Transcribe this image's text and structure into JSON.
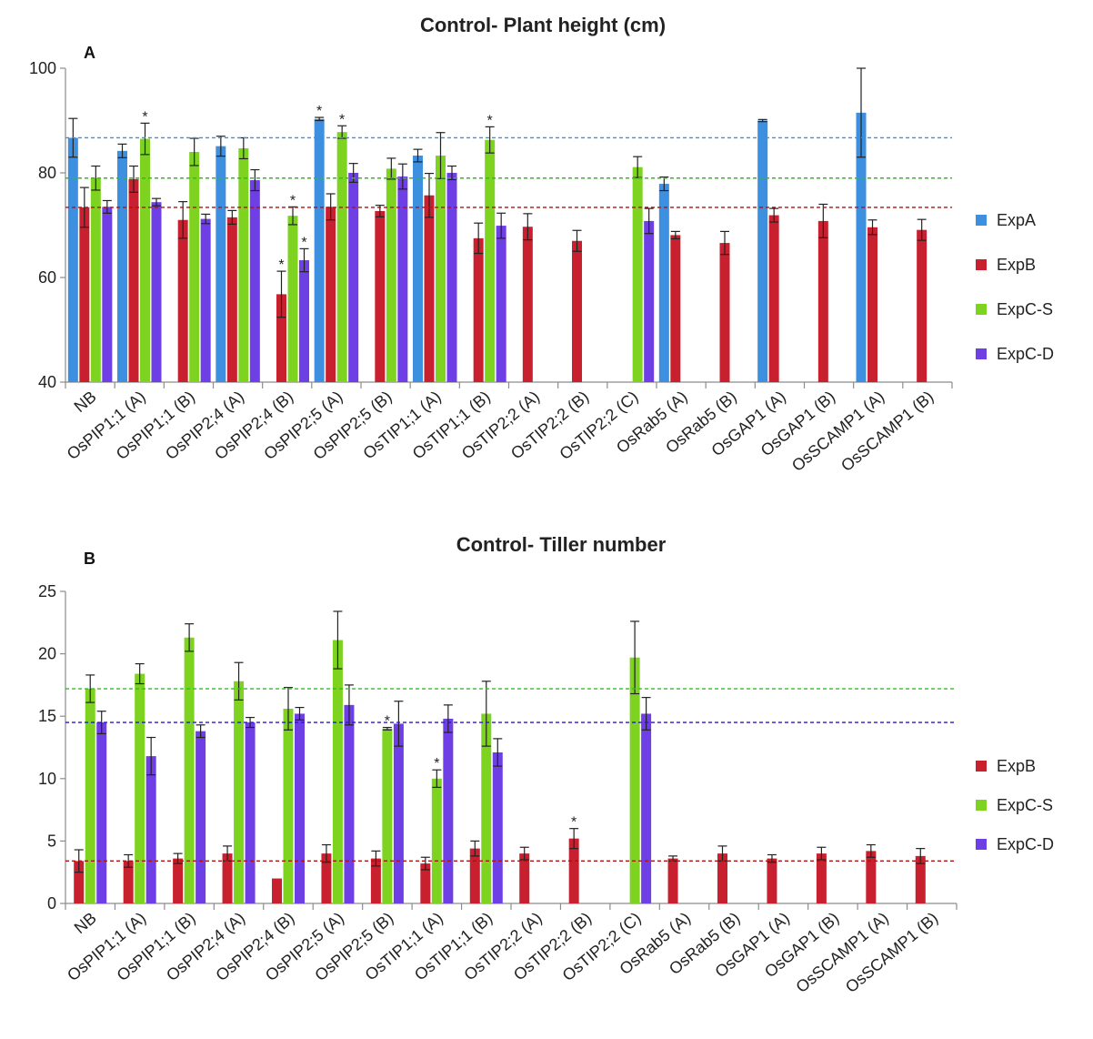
{
  "chart_data": [
    {
      "type": "bar",
      "panel_label": "A",
      "title": "Control- Plant height (cm)",
      "xlabel": "",
      "ylabel": "",
      "ylim": [
        40,
        100
      ],
      "yticks": [
        40,
        60,
        80,
        100
      ],
      "categories": [
        "NB",
        "OsPIP1;1 (A)",
        "OsPIP1;1 (B)",
        "OsPIP2;4 (A)",
        "OsPIP2;4 (B)",
        "OsPIP2;5 (A)",
        "OsPIP2;5 (B)",
        "OsTIP1;1 (A)",
        "OsTIP1;1 (B)",
        "OsTIP2;2 (A)",
        "OsTIP2;2 (B)",
        "OsTIP2;2 (C)",
        "OsRab5 (A)",
        "OsRab5 (B)",
        "OsGAP1 (A)",
        "OsGAP1 (B)",
        "OsSCAMP1 (A)",
        "OsSCAMP1 (B)"
      ],
      "series": [
        {
          "name": "ExpA",
          "color": "#3d8fe0",
          "values": [
            86.7,
            84.2,
            null,
            85.1,
            null,
            90.3,
            null,
            83.3,
            null,
            null,
            null,
            null,
            77.9,
            null,
            90.0,
            null,
            91.5,
            null
          ],
          "errors": [
            3.7,
            1.3,
            null,
            1.9,
            null,
            0.3,
            null,
            1.2,
            null,
            null,
            null,
            null,
            1.3,
            null,
            0.2,
            null,
            8.5,
            null
          ],
          "significant": [
            false,
            false,
            false,
            false,
            false,
            true,
            false,
            false,
            false,
            false,
            false,
            false,
            false,
            false,
            false,
            false,
            false,
            false
          ]
        },
        {
          "name": "ExpB",
          "color": "#c8202e",
          "values": [
            73.4,
            78.8,
            71.0,
            71.5,
            56.8,
            73.5,
            72.7,
            75.7,
            67.5,
            69.7,
            67.0,
            null,
            68.1,
            66.6,
            71.9,
            70.8,
            69.6,
            69.1
          ],
          "errors": [
            3.8,
            2.5,
            3.5,
            1.3,
            4.4,
            2.5,
            1.1,
            4.2,
            2.9,
            2.5,
            2.0,
            null,
            0.7,
            2.2,
            1.3,
            3.2,
            1.4,
            2.0
          ],
          "significant": [
            false,
            false,
            false,
            false,
            true,
            false,
            false,
            false,
            false,
            false,
            false,
            false,
            false,
            false,
            false,
            false,
            false,
            false
          ]
        },
        {
          "name": "ExpC-S",
          "color": "#7ed321",
          "values": [
            79.0,
            86.5,
            84.0,
            84.7,
            71.8,
            87.8,
            80.8,
            83.3,
            86.3,
            null,
            null,
            81.1,
            null,
            null,
            null,
            null,
            null,
            null
          ],
          "errors": [
            2.3,
            3.0,
            2.6,
            2.0,
            1.7,
            1.2,
            2.0,
            4.4,
            2.5,
            null,
            null,
            2.0,
            null,
            null,
            null,
            null,
            null,
            null
          ],
          "significant": [
            false,
            true,
            false,
            false,
            true,
            true,
            false,
            false,
            true,
            false,
            false,
            false,
            false,
            false,
            false,
            false,
            false,
            false
          ]
        },
        {
          "name": "ExpC-D",
          "color": "#6f3fe6",
          "values": [
            73.5,
            74.4,
            71.2,
            78.6,
            63.3,
            80.0,
            79.3,
            80.0,
            69.9,
            null,
            null,
            70.8,
            null,
            null,
            null,
            null,
            null,
            null
          ],
          "errors": [
            1.2,
            0.7,
            0.9,
            2.0,
            2.2,
            1.8,
            2.4,
            1.3,
            2.4,
            null,
            null,
            2.4,
            null,
            null,
            null,
            null,
            null,
            null
          ],
          "significant": [
            false,
            false,
            false,
            false,
            true,
            false,
            false,
            false,
            false,
            false,
            false,
            false,
            false,
            false,
            false,
            false,
            false,
            false
          ]
        }
      ],
      "reference_lines": [
        {
          "value": 86.7,
          "color": "#3d8fe0"
        },
        {
          "value": 79.0,
          "color": "#2fbf1f"
        },
        {
          "value": 73.4,
          "color": "#b01010"
        }
      ],
      "legend_position": "right"
    },
    {
      "type": "bar",
      "panel_label": "B",
      "title": "Control- Tiller number",
      "xlabel": "",
      "ylabel": "",
      "ylim": [
        0,
        25
      ],
      "yticks": [
        0,
        5,
        10,
        15,
        20,
        25
      ],
      "categories": [
        "NB",
        "OsPIP1;1 (A)",
        "OsPIP1;1 (B)",
        "OsPIP2;4 (A)",
        "OsPIP2;4 (B)",
        "OsPIP2;5 (A)",
        "OsPIP2;5 (B)",
        "OsTIP1;1 (A)",
        "OsTIP1;1 (B)",
        "OsTIP2;2 (A)",
        "OsTIP2;2 (B)",
        "OsTIP2;2 (C)",
        "OsRab5 (A)",
        "OsRab5 (B)",
        "OsGAP1 (A)",
        "OsGAP1 (B)",
        "OsSCAMP1 (A)",
        "OsSCAMP1 (B)"
      ],
      "series": [
        {
          "name": "ExpB",
          "color": "#c8202e",
          "values": [
            3.4,
            3.4,
            3.6,
            4.0,
            2.0,
            4.0,
            3.6,
            3.2,
            4.4,
            4.0,
            5.2,
            null,
            3.6,
            4.0,
            3.6,
            4.0,
            4.2,
            3.8
          ],
          "errors": [
            0.9,
            0.5,
            0.4,
            0.6,
            0.0,
            0.7,
            0.6,
            0.5,
            0.6,
            0.5,
            0.8,
            null,
            0.2,
            0.6,
            0.3,
            0.5,
            0.5,
            0.6
          ],
          "significant": [
            false,
            false,
            false,
            false,
            false,
            false,
            false,
            false,
            false,
            false,
            true,
            false,
            false,
            false,
            false,
            false,
            false,
            false
          ]
        },
        {
          "name": "ExpC-S",
          "color": "#7ed321",
          "values": [
            17.2,
            18.4,
            21.3,
            17.8,
            15.6,
            21.1,
            14.0,
            10.0,
            15.2,
            null,
            null,
            19.7,
            null,
            null,
            null,
            null,
            null,
            null
          ],
          "errors": [
            1.1,
            0.8,
            1.1,
            1.5,
            1.7,
            2.3,
            0.1,
            0.7,
            2.6,
            null,
            null,
            2.9,
            null,
            null,
            null,
            null,
            null,
            null
          ],
          "significant": [
            false,
            false,
            false,
            false,
            false,
            false,
            true,
            true,
            false,
            false,
            false,
            false,
            false,
            false,
            false,
            false,
            false,
            false
          ]
        },
        {
          "name": "ExpC-D",
          "color": "#6f3fe6",
          "values": [
            14.5,
            11.8,
            13.8,
            14.5,
            15.2,
            15.9,
            14.4,
            14.8,
            12.1,
            null,
            null,
            15.2,
            null,
            null,
            null,
            null,
            null,
            null
          ],
          "errors": [
            0.9,
            1.5,
            0.5,
            0.4,
            0.5,
            1.6,
            1.8,
            1.1,
            1.1,
            null,
            null,
            1.3,
            null,
            null,
            null,
            null,
            null,
            null
          ],
          "significant": [
            false,
            false,
            false,
            false,
            false,
            false,
            false,
            false,
            false,
            false,
            false,
            false,
            false,
            false,
            false,
            false,
            false,
            false
          ]
        }
      ],
      "reference_lines": [
        {
          "value": 17.2,
          "color": "#2fbf1f"
        },
        {
          "value": 14.5,
          "color": "#2a17c9"
        },
        {
          "value": 3.4,
          "color": "#b01010"
        }
      ],
      "legend_position": "right"
    }
  ]
}
